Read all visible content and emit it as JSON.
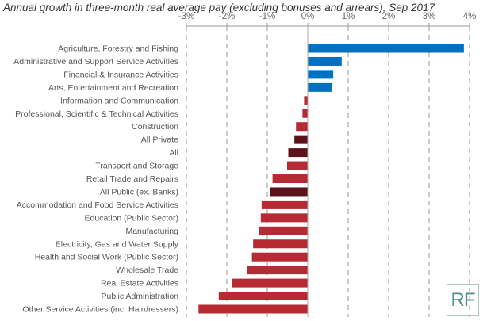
{
  "chart_data": {
    "type": "bar",
    "orientation": "horizontal",
    "title": "Annual growth in three-month real average pay (excluding bonuses and arrears), Sep 2017",
    "xlabel": "",
    "ylabel": "",
    "xlim": [
      -3,
      4
    ],
    "x_ticks": [
      "-3%",
      "-2%",
      "-1%",
      "0%",
      "1%",
      "2%",
      "3%",
      "4%"
    ],
    "x_axis_position": "top",
    "grid": "vertical dashed",
    "categories": [
      "Agriculture, Forestry and Fishing",
      "Administrative and Support Service Activities",
      "Financial & Insurance Activities",
      "Arts, Entertainment and Recreation",
      "Information and Communication",
      "Professional, Scientific & Technical Activities",
      "Construction",
      "All Private",
      "All",
      "Transport and Storage",
      "Retail Trade and Repairs",
      "All Public (ex. Banks)",
      "Accommodation and Food Service Activities",
      "Education (Public Sector)",
      "Manufacturing",
      "Electricity, Gas and Water Supply",
      "Health and Social Work (Public Sector)",
      "Wholesale Trade",
      "Real Estate Activities",
      "Public Administration",
      "Other Service Activities (inc. Hairdressers)"
    ],
    "values": [
      3.86,
      0.84,
      0.63,
      0.59,
      -0.09,
      -0.13,
      -0.29,
      -0.33,
      -0.48,
      -0.51,
      -0.87,
      -0.93,
      -1.14,
      -1.16,
      -1.21,
      -1.35,
      -1.38,
      -1.5,
      -1.88,
      -2.2,
      -2.7
    ],
    "unit": "%",
    "colors": {
      "positive": "#0070c0",
      "negative": "#b72a33",
      "aggregate": "#5c1219"
    },
    "aggregate_categories": [
      "All Private",
      "All",
      "All Public (ex. Banks)"
    ]
  },
  "logo": "RF"
}
